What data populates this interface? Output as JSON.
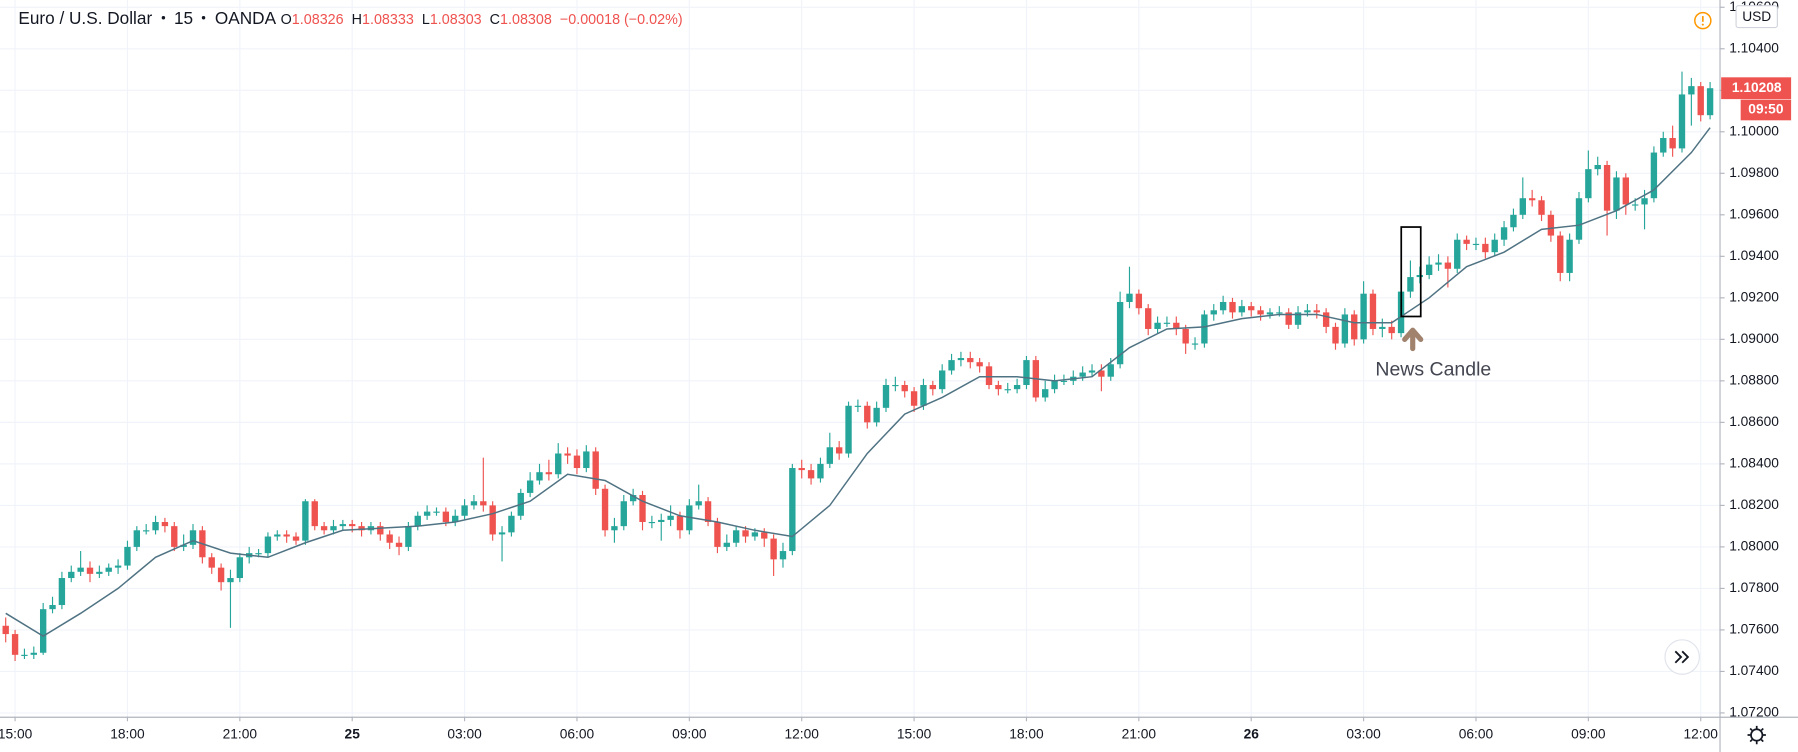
{
  "chart_data": {
    "type": "candlestick",
    "title": "Euro / U.S. Dollar",
    "interval": "15",
    "exchange": "OANDA",
    "legend_values": [
      {
        "label": "O",
        "value": "1.08326"
      },
      {
        "label": "H",
        "value": "1.08333"
      },
      {
        "label": "L",
        "value": "1.08303"
      },
      {
        "label": "C",
        "value": "1.08308"
      }
    ],
    "change": "−0.00018 (−0.02%)",
    "currency": "USD",
    "last_price_label": "1.10208",
    "countdown": "09:50",
    "annotation": "News Candle",
    "up_color": "#26a69a",
    "down_color": "#ef5350",
    "ma_color": "#4f7383",
    "open": [
      1.0762,
      1.0758,
      1.0748,
      1.0748,
      1.0749,
      1.077,
      1.0772,
      1.0785,
      1.0788,
      1.079,
      1.0787,
      1.0788,
      1.079,
      1.0791,
      1.08,
      1.0808,
      1.0808,
      1.0812,
      1.081,
      1.08,
      1.0801,
      1.0808,
      1.0795,
      1.079,
      1.0783,
      1.0785,
      1.0795,
      1.0797,
      1.0797,
      1.0805,
      1.0806,
      1.0805,
      1.0803,
      1.0822,
      1.081,
      1.0808,
      1.081,
      1.0811,
      1.081,
      1.0808,
      1.081,
      1.0806,
      1.0802,
      1.08,
      1.081,
      1.0815,
      1.0817,
      1.0817,
      1.0812,
      1.0815,
      1.082,
      1.0822,
      1.082,
      1.0806,
      1.0807,
      1.0815,
      1.0826,
      1.0832,
      1.0836,
      1.0835,
      1.0845,
      1.0844,
      1.0838,
      1.0846,
      1.0828,
      1.0808,
      1.081,
      1.0822,
      1.0825,
      1.0812,
      1.0812,
      1.0813,
      1.0815,
      1.0808,
      1.082,
      1.0822,
      1.0812,
      1.08,
      1.0802,
      1.0808,
      1.0805,
      1.0807,
      1.0804,
      1.0794,
      1.0798,
      1.0838,
      1.0837,
      1.0833,
      1.084,
      1.0848,
      1.0845,
      1.0868,
      1.0868,
      1.086,
      1.0867,
      1.0878,
      1.0878,
      1.0875,
      1.0868,
      1.0878,
      1.0876,
      1.0885,
      1.089,
      1.0891,
      1.0889,
      1.0887,
      1.0878,
      1.0876,
      1.0876,
      1.0878,
      1.089,
      1.0872,
      1.0876,
      1.088,
      1.088,
      1.0882,
      1.0884,
      1.0885,
      1.0882,
      1.0888,
      1.0918,
      1.0922,
      1.0915,
      1.0905,
      1.0908,
      1.0908,
      1.0905,
      1.0898,
      1.0898,
      1.0912,
      1.0914,
      1.0918,
      1.0913,
      1.0916,
      1.0914,
      1.0912,
      1.0913,
      1.0913,
      1.0907,
      1.0913,
      1.0914,
      1.0913,
      1.0906,
      1.0898,
      1.0912,
      1.09,
      1.0922,
      1.0905,
      1.0906,
      1.0903,
      1.0923,
      1.093,
      1.0931,
      1.0936,
      1.0937,
      1.0934,
      1.0948,
      1.0946,
      1.0946,
      1.0942,
      1.0948,
      1.0954,
      1.096,
      1.0968,
      1.0967,
      1.096,
      1.095,
      1.0932,
      1.0948,
      1.0968,
      1.0982,
      1.0984,
      1.0962,
      1.0978,
      1.0965,
      1.0965,
      1.0968,
      1.099,
      1.0997,
      1.0992,
      1.1018,
      1.1022,
      1.1008
    ],
    "high": [
      1.0766,
      1.076,
      1.0751,
      1.0752,
      1.0773,
      1.0776,
      1.0788,
      1.0791,
      1.0798,
      1.0793,
      1.0791,
      1.0792,
      1.0794,
      1.0803,
      1.081,
      1.0811,
      1.0815,
      1.0814,
      1.0812,
      1.0806,
      1.0811,
      1.081,
      1.0797,
      1.0792,
      1.0789,
      1.0797,
      1.08,
      1.0799,
      1.0807,
      1.0808,
      1.0808,
      1.0807,
      1.0823,
      1.0823,
      1.0812,
      1.0813,
      1.0813,
      1.0813,
      1.0812,
      1.0812,
      1.0812,
      1.0808,
      1.0805,
      1.0812,
      1.0817,
      1.082,
      1.0819,
      1.0819,
      1.0818,
      1.0823,
      1.0825,
      1.0843,
      1.0822,
      1.081,
      1.0817,
      1.0828,
      1.0836,
      1.084,
      1.0842,
      1.085,
      1.0848,
      1.0847,
      1.0849,
      1.0848,
      1.083,
      1.0814,
      1.0825,
      1.0828,
      1.0827,
      1.0815,
      1.0816,
      1.082,
      1.0817,
      1.0823,
      1.083,
      1.0824,
      1.0814,
      1.0806,
      1.081,
      1.081,
      1.0809,
      1.0809,
      1.0806,
      1.0802,
      1.084,
      1.0842,
      1.084,
      1.0843,
      1.0855,
      1.0851,
      1.087,
      1.0871,
      1.087,
      1.087,
      1.0881,
      1.0882,
      1.088,
      1.0877,
      1.0881,
      1.088,
      1.0888,
      1.0893,
      1.0894,
      1.0894,
      1.0891,
      1.0889,
      1.088,
      1.0879,
      1.0881,
      1.0892,
      1.0892,
      1.088,
      1.0883,
      1.0883,
      1.0885,
      1.0887,
      1.0888,
      1.0888,
      1.0891,
      1.0923,
      1.0935,
      1.0924,
      1.0917,
      1.0911,
      1.0911,
      1.0911,
      1.0907,
      1.0901,
      1.0914,
      1.0917,
      1.0921,
      1.092,
      1.0919,
      1.0918,
      1.0916,
      1.0915,
      1.0916,
      1.0915,
      1.0916,
      1.0917,
      1.0917,
      1.0915,
      1.0908,
      1.0915,
      1.0914,
      1.0928,
      1.0924,
      1.091,
      1.0909,
      1.093,
      1.0938,
      1.0935,
      1.094,
      1.0941,
      1.094,
      1.0951,
      1.095,
      1.0949,
      1.0949,
      1.0951,
      1.0957,
      1.0963,
      1.0978,
      1.0972,
      1.0969,
      1.0962,
      1.0952,
      1.0951,
      1.0971,
      1.0991,
      1.0988,
      1.0986,
      1.0981,
      1.098,
      1.0968,
      1.0972,
      1.0993,
      1.1,
      1.1003,
      1.1029,
      1.1026,
      1.1024,
      1.1024
    ],
    "low": [
      1.0754,
      1.0745,
      1.0746,
      1.0746,
      1.0748,
      1.0768,
      1.077,
      1.0783,
      1.0786,
      1.0783,
      1.0785,
      1.0786,
      1.0787,
      1.0789,
      1.0798,
      1.0806,
      1.0806,
      1.0807,
      1.0798,
      1.0798,
      1.0799,
      1.0792,
      1.0787,
      1.0779,
      1.0761,
      1.0783,
      1.0792,
      1.0795,
      1.0795,
      1.0803,
      1.0802,
      1.0801,
      1.0801,
      1.0808,
      1.0806,
      1.0806,
      1.0808,
      1.0807,
      1.0805,
      1.0806,
      1.0803,
      1.0799,
      1.0796,
      1.0798,
      1.0808,
      1.0813,
      1.0815,
      1.081,
      1.081,
      1.0813,
      1.0818,
      1.0817,
      1.0803,
      1.0793,
      1.0805,
      1.0813,
      1.0824,
      1.083,
      1.0832,
      1.0833,
      1.084,
      1.0835,
      1.0836,
      1.0825,
      1.0805,
      1.0802,
      1.0808,
      1.082,
      1.0808,
      1.0809,
      1.0803,
      1.081,
      1.0804,
      1.0806,
      1.0818,
      1.081,
      1.0797,
      1.0798,
      1.08,
      1.0802,
      1.0803,
      1.08,
      1.0786,
      1.079,
      1.0796,
      1.0833,
      1.083,
      1.0831,
      1.0838,
      1.0842,
      1.0843,
      1.0865,
      1.0857,
      1.0858,
      1.0865,
      1.0875,
      1.0872,
      1.0865,
      1.0866,
      1.0873,
      1.0874,
      1.0883,
      1.0887,
      1.0886,
      1.0884,
      1.0876,
      1.0873,
      1.0874,
      1.0874,
      1.0876,
      1.087,
      1.087,
      1.0874,
      1.0878,
      1.0878,
      1.088,
      1.0882,
      1.0875,
      1.088,
      1.0886,
      1.0915,
      1.0912,
      1.0902,
      1.0903,
      1.0906,
      1.0902,
      1.0893,
      1.0895,
      1.0896,
      1.0909,
      1.0912,
      1.091,
      1.0911,
      1.0911,
      1.0909,
      1.091,
      1.0911,
      1.0905,
      1.0905,
      1.0911,
      1.091,
      1.0903,
      1.0895,
      1.0896,
      1.0897,
      1.0898,
      1.0902,
      1.0901,
      1.09,
      1.0901,
      1.092,
      1.0927,
      1.0929,
      1.0933,
      1.0925,
      1.0932,
      1.0943,
      1.0943,
      1.0939,
      1.094,
      1.0945,
      1.0952,
      1.0958,
      1.0964,
      1.0957,
      1.0947,
      1.0928,
      1.0928,
      1.0946,
      1.0966,
      1.0979,
      1.095,
      1.0958,
      1.096,
      1.0962,
      1.0953,
      1.0966,
      1.0988,
      1.0988,
      1.099,
      1.1003,
      1.1005,
      1.1006
    ],
    "close": [
      1.0758,
      1.0748,
      1.0748,
      1.0749,
      1.077,
      1.0772,
      1.0785,
      1.0788,
      1.079,
      1.0787,
      1.0788,
      1.079,
      1.0791,
      1.08,
      1.0808,
      1.0808,
      1.0812,
      1.081,
      1.08,
      1.0801,
      1.0808,
      1.0795,
      1.079,
      1.0783,
      1.0785,
      1.0795,
      1.0797,
      1.0797,
      1.0805,
      1.0806,
      1.0805,
      1.0803,
      1.0822,
      1.081,
      1.0808,
      1.081,
      1.0811,
      1.081,
      1.0808,
      1.081,
      1.0806,
      1.0802,
      1.08,
      1.081,
      1.0815,
      1.0817,
      1.0817,
      1.0812,
      1.0815,
      1.082,
      1.0822,
      1.082,
      1.0806,
      1.0807,
      1.0815,
      1.0826,
      1.0832,
      1.0836,
      1.0835,
      1.0845,
      1.0844,
      1.0838,
      1.0846,
      1.0828,
      1.0808,
      1.081,
      1.0822,
      1.0825,
      1.0812,
      1.0812,
      1.0813,
      1.0815,
      1.0808,
      1.082,
      1.0822,
      1.0812,
      1.08,
      1.0802,
      1.0808,
      1.0805,
      1.0807,
      1.0804,
      1.0794,
      1.0798,
      1.0838,
      1.0837,
      1.0833,
      1.084,
      1.0848,
      1.0845,
      1.0868,
      1.0868,
      1.086,
      1.0867,
      1.0878,
      1.0878,
      1.0875,
      1.0868,
      1.0878,
      1.0876,
      1.0885,
      1.089,
      1.0891,
      1.0889,
      1.0887,
      1.0878,
      1.0876,
      1.0876,
      1.0878,
      1.089,
      1.0872,
      1.0876,
      1.088,
      1.088,
      1.0882,
      1.0884,
      1.0885,
      1.0882,
      1.0888,
      1.0918,
      1.0922,
      1.0915,
      1.0905,
      1.0908,
      1.0908,
      1.0905,
      1.0898,
      1.0898,
      1.0912,
      1.0914,
      1.0918,
      1.0913,
      1.0916,
      1.0914,
      1.0912,
      1.0913,
      1.0913,
      1.0907,
      1.0913,
      1.0914,
      1.0913,
      1.0906,
      1.0898,
      1.0912,
      1.09,
      1.0922,
      1.0905,
      1.0906,
      1.0903,
      1.0923,
      1.093,
      1.0931,
      1.0936,
      1.0937,
      1.0934,
      1.0948,
      1.0946,
      1.0946,
      1.0942,
      1.0948,
      1.0954,
      1.096,
      1.0968,
      1.0967,
      1.096,
      1.095,
      1.0932,
      1.0948,
      1.0968,
      1.0982,
      1.0984,
      1.0962,
      1.0978,
      1.0965,
      1.0965,
      1.0968,
      1.099,
      1.0997,
      1.0992,
      1.1018,
      1.1022,
      1.1008,
      1.1021
    ],
    "ma": {
      "x": [
        0,
        4,
        8,
        12,
        16,
        20,
        24,
        28,
        32,
        36,
        40,
        44,
        48,
        52,
        56,
        60,
        64,
        68,
        72,
        76,
        80,
        84,
        88,
        92,
        96,
        100,
        104,
        108,
        112,
        116,
        120,
        124,
        128,
        132,
        136,
        140,
        144,
        148,
        152,
        156,
        160,
        164,
        168,
        172,
        176,
        180,
        182
      ],
      "values": [
        1.0768,
        1.0757,
        1.0768,
        1.078,
        1.0795,
        1.0803,
        1.0797,
        1.0795,
        1.0802,
        1.0808,
        1.0809,
        1.081,
        1.0812,
        1.0816,
        1.0822,
        1.0835,
        1.0832,
        1.0822,
        1.0815,
        1.0812,
        1.0808,
        1.0805,
        1.082,
        1.0845,
        1.0864,
        1.0872,
        1.0882,
        1.0882,
        1.088,
        1.0882,
        1.0896,
        1.0905,
        1.0906,
        1.091,
        1.0912,
        1.0912,
        1.0908,
        1.0908,
        1.092,
        1.0935,
        1.0942,
        1.0953,
        1.0955,
        1.0962,
        1.0972,
        1.099,
        1.1002
      ]
    },
    "xlim": [
      -0.61,
      183.06
    ],
    "xticks": [
      {
        "value": 1,
        "label": "15:00"
      },
      {
        "value": 13,
        "label": "18:00"
      },
      {
        "value": 25,
        "label": "21:00"
      },
      {
        "value": 37,
        "label": "25"
      },
      {
        "value": 49,
        "label": "03:00"
      },
      {
        "value": 61,
        "label": "06:00"
      },
      {
        "value": 73,
        "label": "09:00"
      },
      {
        "value": 85,
        "label": "12:00"
      },
      {
        "value": 97,
        "label": "15:00"
      },
      {
        "value": 109,
        "label": "18:00"
      },
      {
        "value": 121,
        "label": "21:00"
      },
      {
        "value": 133,
        "label": "26"
      },
      {
        "value": 145,
        "label": "03:00"
      },
      {
        "value": 157,
        "label": "06:00"
      },
      {
        "value": 169,
        "label": "09:00"
      },
      {
        "value": 181,
        "label": "12:00"
      }
    ],
    "ylim": [
      1.07182,
      1.10635
    ],
    "yticks": [
      {
        "value": 1.072,
        "label": "1.07200"
      },
      {
        "value": 1.074,
        "label": "1.07400"
      },
      {
        "value": 1.076,
        "label": "1.07600"
      },
      {
        "value": 1.078,
        "label": "1.07800"
      },
      {
        "value": 1.08,
        "label": "1.08000"
      },
      {
        "value": 1.082,
        "label": "1.08200"
      },
      {
        "value": 1.084,
        "label": "1.08400"
      },
      {
        "value": 1.086,
        "label": "1.08600"
      },
      {
        "value": 1.088,
        "label": "1.08800"
      },
      {
        "value": 1.09,
        "label": "1.09000"
      },
      {
        "value": 1.092,
        "label": "1.09200"
      },
      {
        "value": 1.094,
        "label": "1.09400"
      },
      {
        "value": 1.096,
        "label": "1.09600"
      },
      {
        "value": 1.098,
        "label": "1.09800"
      },
      {
        "value": 1.1,
        "label": "1.10000"
      },
      {
        "value": 1.102,
        "label": "1.10200"
      },
      {
        "value": 1.104,
        "label": "1.10400"
      },
      {
        "value": 1.106,
        "label": "1.10600"
      }
    ],
    "grid": true
  }
}
